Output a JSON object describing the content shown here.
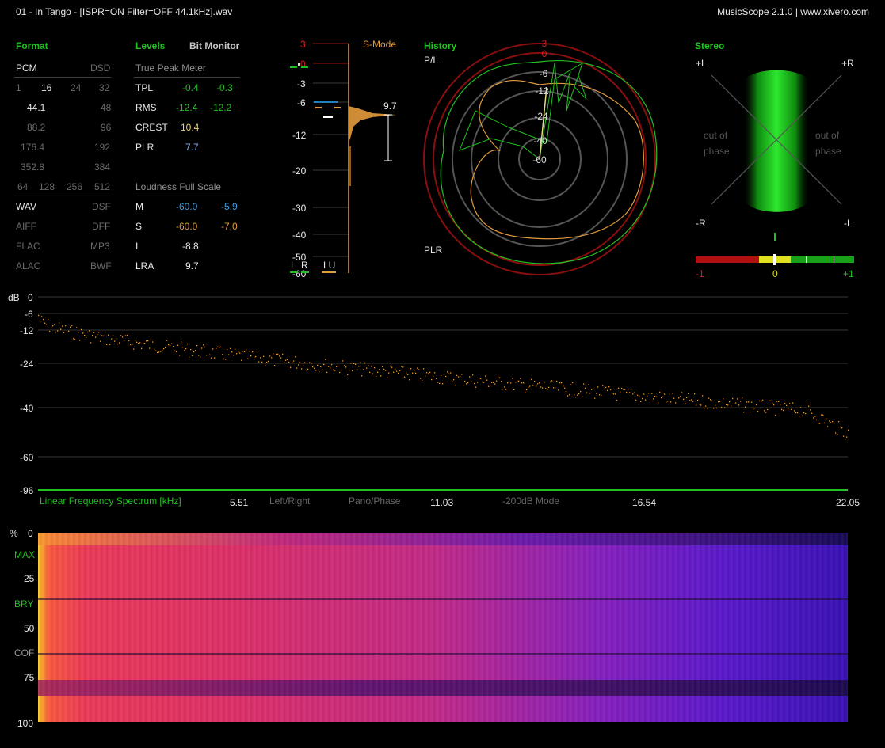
{
  "window": {
    "title": "01 - In Tango - [ISPR=ON Filter=OFF 44.1kHz].wav",
    "app": "MusicScope 2.1.0 | www.xivero.com"
  },
  "format": {
    "header": "Format",
    "pcm": "PCM",
    "dsd": "DSD",
    "bits": [
      "1",
      "16",
      "24",
      "32"
    ],
    "rates": [
      [
        "44.1",
        "48"
      ],
      [
        "88.2",
        "96"
      ],
      [
        "176.4",
        "192"
      ],
      [
        "352.8",
        "384"
      ]
    ],
    "dsd_rates": [
      "64",
      "128",
      "256",
      "512"
    ],
    "containers": [
      [
        "WAV",
        "DSF"
      ],
      [
        "AIFF",
        "DFF"
      ],
      [
        "FLAC",
        "MP3"
      ],
      [
        "ALAC",
        "BWF"
      ]
    ]
  },
  "levels": {
    "header": "Levels",
    "bit_monitor": "Bit Monitor",
    "true_peak_title": "True Peak Meter",
    "rows": [
      {
        "label": "TPL",
        "l": "-0.4",
        "r": "-0.3"
      },
      {
        "label": "RMS",
        "l": "-12.4",
        "r": "-12.2"
      },
      {
        "label": "CREST",
        "l": "10.4",
        "r": ""
      },
      {
        "label": "PLR",
        "l": "7.7",
        "r": ""
      }
    ],
    "loudness_title": "Loudness Full Scale",
    "loud_rows": [
      {
        "label": "M",
        "l": "-60.0",
        "r": "-5.9"
      },
      {
        "label": "S",
        "l": "-60.0",
        "r": "-7.0"
      },
      {
        "label": "I",
        "l": "-8.8",
        "r": ""
      },
      {
        "label": "LRA",
        "l": "9.7",
        "r": ""
      }
    ]
  },
  "meter": {
    "scale": [
      "3",
      "0",
      "-3",
      "-6",
      "-12",
      "-20",
      "-30",
      "-40",
      "-50",
      "-60"
    ],
    "smode": "S-Mode",
    "lra_value": "9.7",
    "labels": {
      "l": "L",
      "r": "R",
      "lu": "LU"
    }
  },
  "history": {
    "header": "History",
    "pl": "P/L",
    "plr": "PLR",
    "rings": [
      "3",
      "0",
      "-6",
      "-12",
      "-24",
      "-40",
      "-60"
    ]
  },
  "stereo": {
    "header": "Stereo",
    "plus_l": "+L",
    "plus_r": "+R",
    "minus_r": "-R",
    "minus_l": "-L",
    "out_of_phase": "out of",
    "phase": "phase",
    "corr_labels": [
      "-1",
      "0",
      "+1"
    ]
  },
  "spectrum": {
    "db_label": "dB",
    "db_ticks": [
      "0",
      "-6",
      "-12",
      "-24",
      "-40",
      "-60",
      "-96"
    ],
    "title": "Linear Frequency Spectrum [kHz]",
    "freq_ticks": [
      "5.51",
      "11.03",
      "16.54",
      "22.05"
    ],
    "mode_labels": [
      "Left/Right",
      "Pano/Phase",
      "-200dB Mode"
    ]
  },
  "spectrogram": {
    "left_labels": [
      "%",
      "0",
      "MAX",
      "25",
      "BRY",
      "50",
      "COF",
      "75",
      "100"
    ]
  },
  "colors": {
    "accent": "#22c022",
    "orange": "#e39b3b",
    "blue": "#3f9fe0",
    "red": "#c01010"
  }
}
